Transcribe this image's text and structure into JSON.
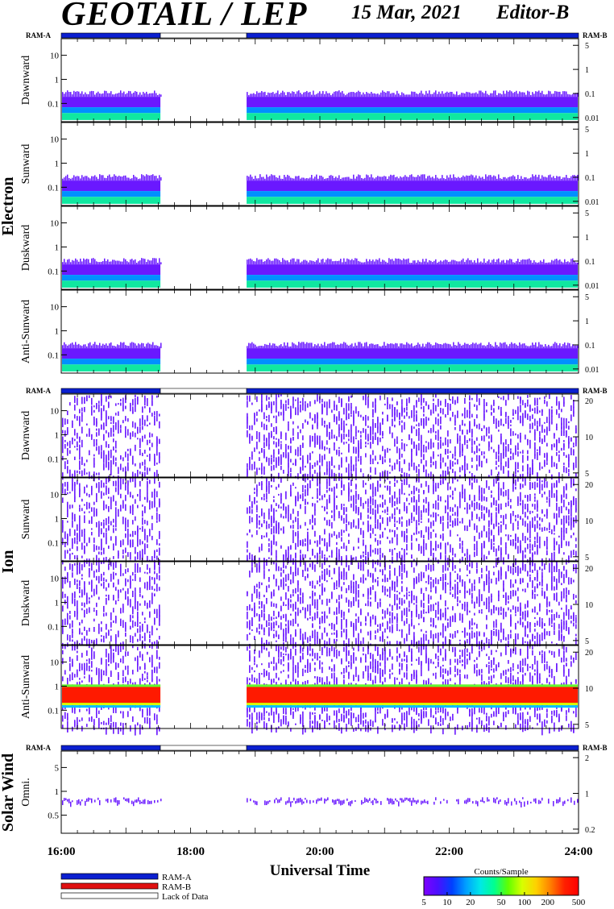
{
  "header": {
    "title": "GEOTAIL / LEP",
    "date": "15 Mar, 2021",
    "editor": "Editor-B"
  },
  "colors": {
    "ram_a": "#0b1fd0",
    "ram_b": "#e01010",
    "lack": "#ffffff",
    "colorbar": [
      "#7f00ff",
      "#4a10ff",
      "#0040ff",
      "#00a0ff",
      "#00e8e8",
      "#00ff90",
      "#60ff00",
      "#d8ff00",
      "#ffd000",
      "#ff8000",
      "#ff2000",
      "#ff0000"
    ]
  },
  "chart_data": {
    "type": "heatmap",
    "xlabel": "Universal Time",
    "x_ticks": [
      "16:00",
      "18:00",
      "20:00",
      "22:00",
      "24:00"
    ],
    "ram_labels": {
      "left": "RAM-A",
      "right": "RAM-B"
    },
    "status_bar": [
      {
        "from": "16:00",
        "to": "17:32",
        "state": "RAM-A"
      },
      {
        "from": "17:32",
        "to": "18:52",
        "state": "Lack of Data"
      },
      {
        "from": "18:52",
        "to": "24:00",
        "state": "RAM-A"
      }
    ],
    "groups": [
      {
        "name": "Electron",
        "left_ticks": [
          "10",
          "1",
          "0.1"
        ],
        "right_ticks": [
          "5",
          "1",
          "0.1",
          "0.01"
        ],
        "panels": [
          {
            "name": "Dawnward",
            "band": "low",
            "level": "medium"
          },
          {
            "name": "Sunward",
            "band": "low",
            "level": "medium"
          },
          {
            "name": "Duskward",
            "band": "low",
            "level": "medium"
          },
          {
            "name": "Anti-Sunward",
            "band": "low",
            "level": "medium"
          }
        ]
      },
      {
        "name": "Ion",
        "left_ticks": [
          "10",
          "1",
          "0.1"
        ],
        "right_ticks": [
          "20",
          "10",
          "5"
        ],
        "panels": [
          {
            "name": "Dawnward",
            "band": "scatter",
            "level": "low"
          },
          {
            "name": "Sunward",
            "band": "scatter",
            "level": "low"
          },
          {
            "name": "Duskward",
            "band": "scatter",
            "level": "low"
          },
          {
            "name": "Anti-Sunward",
            "band": "intense",
            "level": "high"
          }
        ]
      },
      {
        "name": "Solar Wind",
        "left_ticks": [
          "5",
          "1",
          "0.5"
        ],
        "right_ticks": [
          "2",
          "1",
          "0.2"
        ],
        "panels": [
          {
            "name": "Omni.",
            "band": "line",
            "level": "low"
          }
        ]
      }
    ],
    "legend": [
      {
        "label": "RAM-A",
        "color": "#0b1fd0"
      },
      {
        "label": "RAM-B",
        "color": "#e01010"
      },
      {
        "label": "Lack of Data",
        "color": "#ffffff"
      }
    ],
    "colorbar": {
      "title": "Counts/Sample",
      "ticks": [
        "5",
        "10",
        "20",
        "50",
        "100",
        "200",
        "500"
      ],
      "range": [
        5,
        500
      ],
      "scale": "log"
    },
    "data_gap": {
      "from": "17:32",
      "to": "18:52"
    }
  }
}
